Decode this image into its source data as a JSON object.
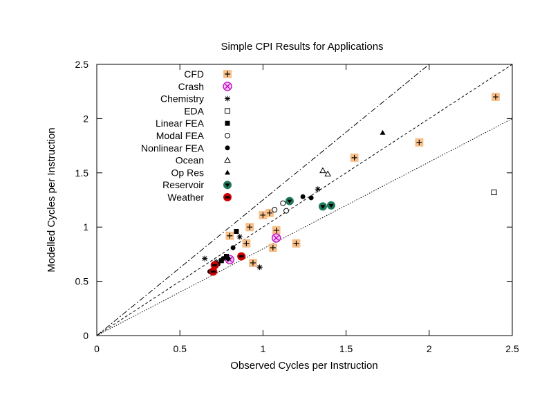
{
  "chart_data": {
    "type": "scatter",
    "title": "Simple CPI Results for Applications",
    "xlabel": "Observed Cycles per Instruction",
    "ylabel": "Modelled Cycles per Instruction",
    "xlim": [
      0,
      2.5
    ],
    "ylim": [
      0,
      2.5
    ],
    "xticks": [
      "0",
      "0.5",
      "1",
      "1.5",
      "2",
      "2.5"
    ],
    "yticks": [
      "0",
      "0.5",
      "1",
      "1.5",
      "2",
      "2.5"
    ],
    "grid": false,
    "legend_position": "top-left",
    "reference_lines": [
      {
        "slope": 1.25,
        "style": "dash-dot"
      },
      {
        "slope": 1.0,
        "style": "dashed"
      },
      {
        "slope": 0.8,
        "style": "dotted"
      }
    ],
    "series": [
      {
        "name": "CFD",
        "marker": "plus",
        "color": "#f4a460",
        "points": [
          [
            0.8,
            0.92
          ],
          [
            0.92,
            1.0
          ],
          [
            1.0,
            1.11
          ],
          [
            1.04,
            1.13
          ],
          [
            1.08,
            0.97
          ],
          [
            0.9,
            0.85
          ],
          [
            0.94,
            0.67
          ],
          [
            1.06,
            0.81
          ],
          [
            1.2,
            0.85
          ],
          [
            1.55,
            1.64
          ],
          [
            1.94,
            1.78
          ],
          [
            2.4,
            2.2
          ]
        ]
      },
      {
        "name": "Crash",
        "marker": "circle-x",
        "color": "#c000c0",
        "points": [
          [
            1.08,
            0.9
          ],
          [
            0.8,
            0.7
          ]
        ]
      },
      {
        "name": "Chemistry",
        "marker": "asterisk",
        "color": "#000000",
        "points": [
          [
            0.65,
            0.71
          ],
          [
            0.72,
            0.68
          ],
          [
            0.86,
            0.91
          ],
          [
            0.98,
            0.63
          ],
          [
            1.33,
            1.35
          ]
        ]
      },
      {
        "name": "EDA",
        "marker": "open-square",
        "color": "#000000",
        "points": [
          [
            2.39,
            1.32
          ]
        ]
      },
      {
        "name": "Linear FEA",
        "marker": "filled-square",
        "color": "#000000",
        "points": [
          [
            0.84,
            0.96
          ],
          [
            0.78,
            0.73
          ],
          [
            0.75,
            0.69
          ]
        ]
      },
      {
        "name": "Modal FEA",
        "marker": "open-circle",
        "color": "#000000",
        "points": [
          [
            1.07,
            1.16
          ],
          [
            1.12,
            1.22
          ],
          [
            1.14,
            1.15
          ]
        ]
      },
      {
        "name": "Nonlinear FEA",
        "marker": "filled-circle",
        "color": "#000000",
        "points": [
          [
            0.68,
            0.59
          ],
          [
            0.73,
            0.66
          ],
          [
            0.76,
            0.71
          ],
          [
            0.79,
            0.71
          ],
          [
            0.82,
            0.81
          ],
          [
            1.24,
            1.28
          ],
          [
            1.29,
            1.27
          ]
        ]
      },
      {
        "name": "Ocean",
        "marker": "open-triangle",
        "color": "#000000",
        "points": [
          [
            1.36,
            1.52
          ],
          [
            1.39,
            1.49
          ]
        ]
      },
      {
        "name": "Op Res",
        "marker": "filled-triangle",
        "color": "#000000",
        "points": [
          [
            1.72,
            1.87
          ]
        ]
      },
      {
        "name": "Reservoir",
        "marker": "triangle-in-circle",
        "color": "#1f7a5a",
        "points": [
          [
            1.16,
            1.24
          ],
          [
            1.36,
            1.19
          ],
          [
            1.41,
            1.2
          ]
        ]
      },
      {
        "name": "Weather",
        "marker": "bar-in-circle",
        "color": "#cc0000",
        "points": [
          [
            0.7,
            0.59
          ],
          [
            0.71,
            0.65
          ],
          [
            0.87,
            0.73
          ]
        ]
      }
    ]
  }
}
